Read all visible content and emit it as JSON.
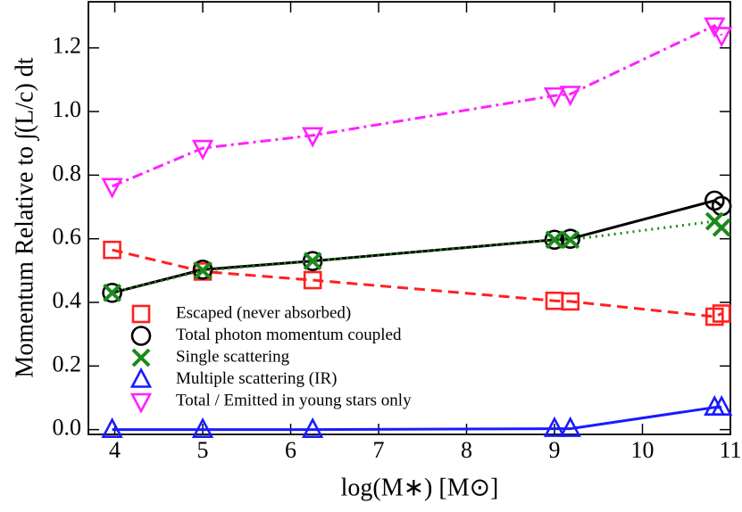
{
  "chart_data": {
    "type": "line",
    "x_label": "log(M∗) [M⊙]",
    "y_label": "Momentum Relative to ∫(L/c) dt",
    "x": [
      3.97,
      5.0,
      6.25,
      9.0,
      9.18,
      10.82,
      10.9
    ],
    "series": [
      {
        "name": "Escaped (never absorbed)",
        "color": "#ff2020",
        "marker": "square",
        "linestyle": "dashed",
        "values": [
          0.565,
          0.497,
          0.47,
          0.405,
          0.403,
          0.355,
          0.365
        ]
      },
      {
        "name": "Total photon momentum coupled",
        "color": "#000000",
        "marker": "circle",
        "linestyle": "solid",
        "values": [
          0.43,
          0.503,
          0.53,
          0.597,
          0.6,
          0.72,
          0.703
        ]
      },
      {
        "name": "Single scattering",
        "color": "#1a8a1a",
        "marker": "x",
        "linestyle": "dotted",
        "values": [
          0.43,
          0.5,
          0.53,
          0.597,
          0.597,
          0.655,
          0.635
        ]
      },
      {
        "name": "Multiple scattering (IR)",
        "color": "#1a1aff",
        "marker": "triangle-up",
        "linestyle": "solid",
        "values": [
          0.0,
          0.0,
          0.0,
          0.003,
          0.003,
          0.07,
          0.07
        ]
      },
      {
        "name": "Total / Emitted in young stars only",
        "color": "#ff20ff",
        "marker": "triangle-down",
        "linestyle": "dashdot",
        "values": [
          0.765,
          0.885,
          0.925,
          1.05,
          1.055,
          1.27,
          1.24
        ]
      }
    ],
    "xlim": [
      3.7,
      11.0
    ],
    "ylim": [
      -0.015,
      1.345
    ],
    "xticks": [
      4,
      5,
      6,
      7,
      8,
      9,
      10,
      11
    ],
    "yticks": [
      {
        "value": 0.0,
        "label": "0.0"
      },
      0.2,
      0.4,
      0.6,
      0.8,
      {
        "value": 1.0,
        "label": "1.0"
      },
      1.2
    ]
  }
}
